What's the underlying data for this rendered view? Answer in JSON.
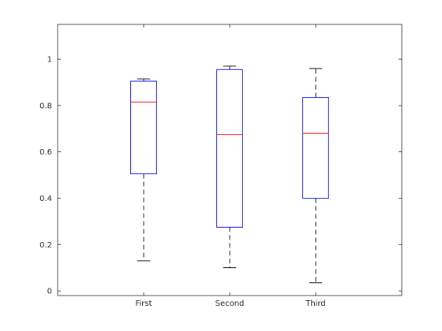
{
  "chart_data": {
    "type": "boxplot",
    "title": "",
    "xlabel": "",
    "ylabel": "",
    "categories": [
      "First",
      "Second",
      "Third"
    ],
    "ylim": [
      -0.02,
      1.15
    ],
    "yticks": [
      0,
      0.2,
      0.4,
      0.6,
      0.8,
      1
    ],
    "ytick_labels": [
      "0",
      "0.2",
      "0.4",
      "0.6",
      "0.8",
      "1"
    ],
    "grid": false,
    "boxes": [
      {
        "label": "First",
        "whisker_low": 0.13,
        "q1": 0.505,
        "median": 0.815,
        "q3": 0.905,
        "whisker_high": 0.915
      },
      {
        "label": "Second",
        "whisker_low": 0.1,
        "q1": 0.275,
        "median": 0.675,
        "q3": 0.955,
        "whisker_high": 0.97
      },
      {
        "label": "Third",
        "whisker_low": 0.035,
        "q1": 0.4,
        "median": 0.68,
        "q3": 0.835,
        "whisker_high": 0.96
      }
    ],
    "colors": {
      "box": "#0000ff",
      "median": "#ff0000",
      "whisker": "#000000",
      "axis": "#262626"
    }
  }
}
